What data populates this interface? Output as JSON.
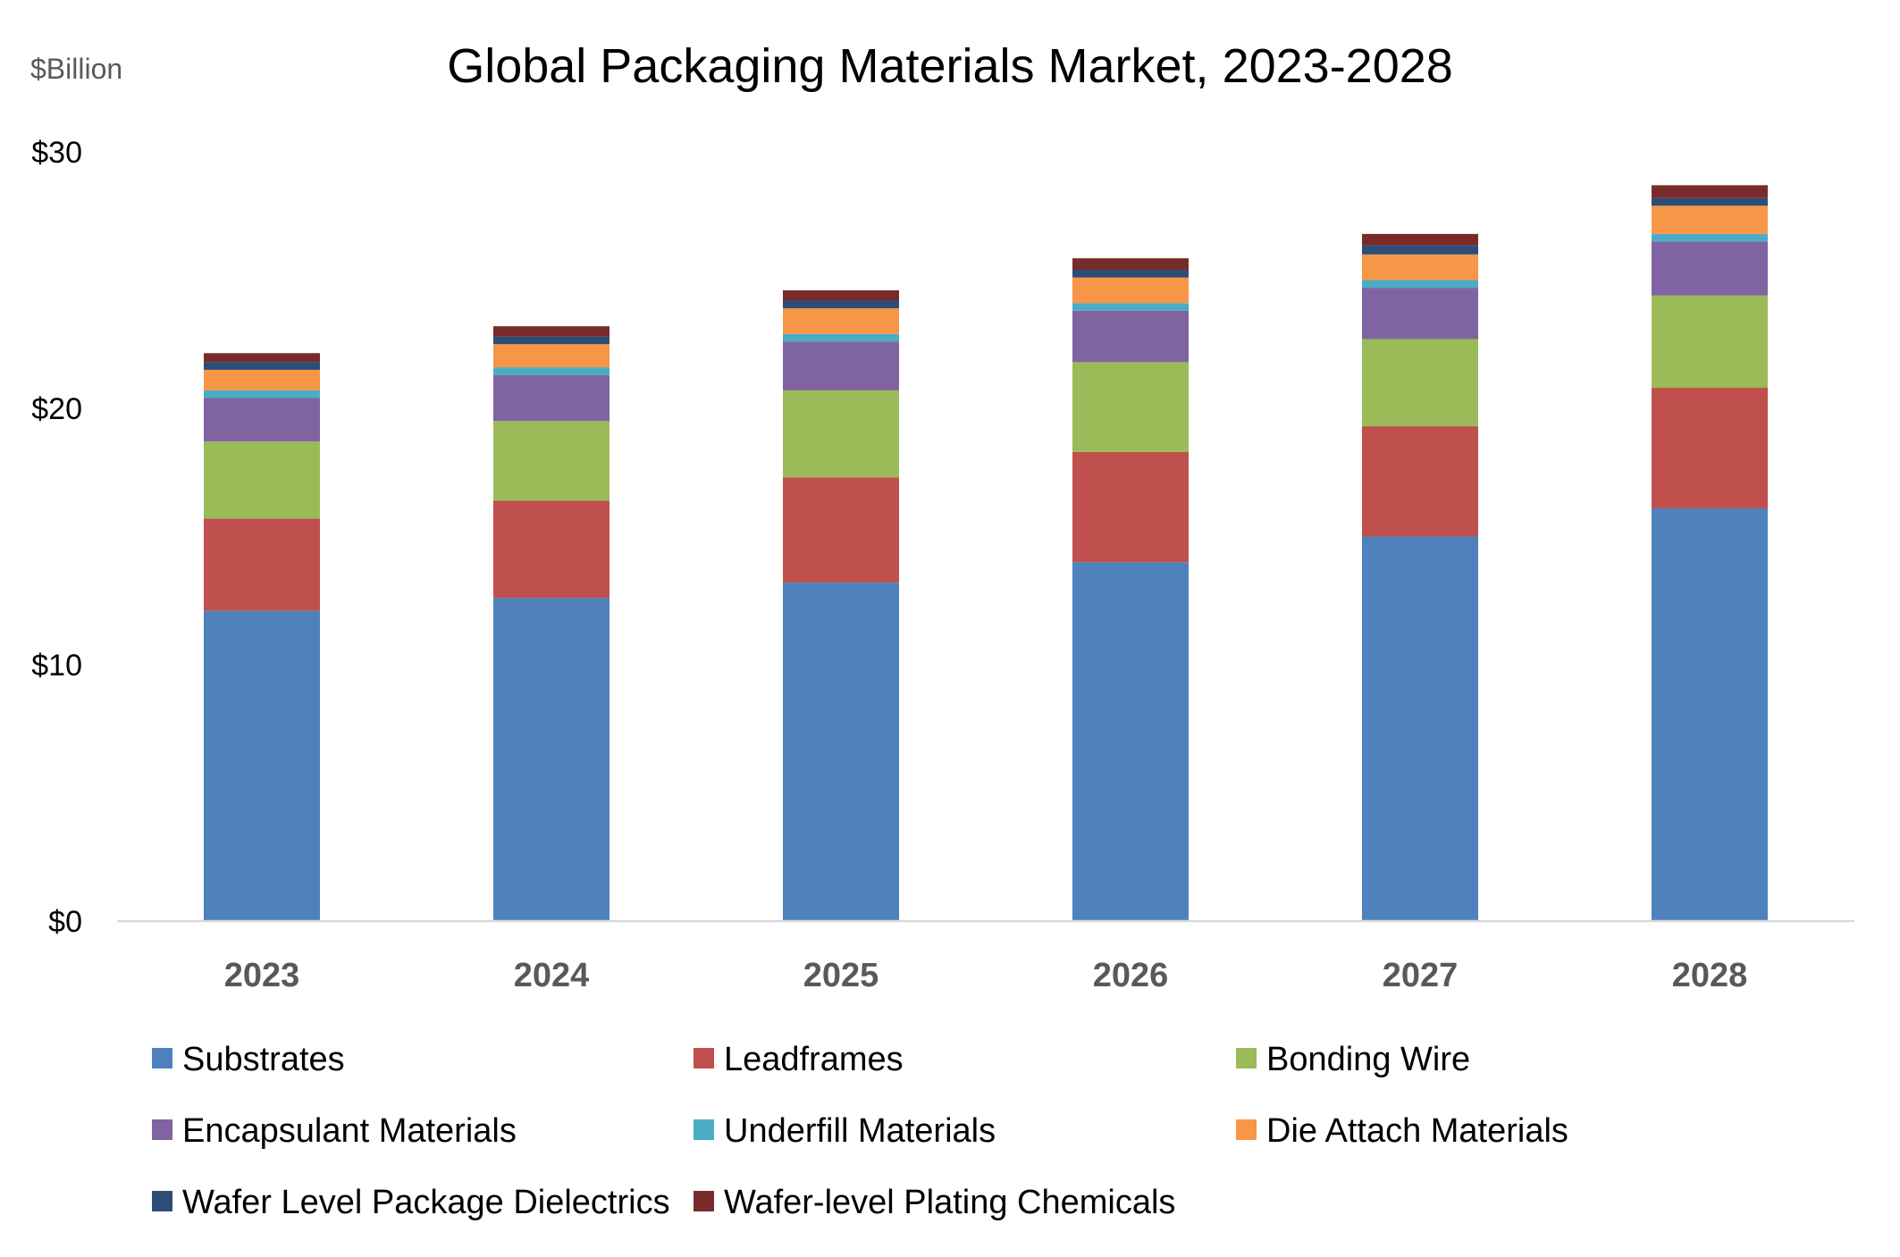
{
  "chart_data": {
    "type": "bar",
    "stacked": true,
    "title": "Global Packaging Materials Market, 2023-2028",
    "unit_label": "$Billion",
    "xlabel": "",
    "ylabel": "",
    "ylim": [
      0,
      30
    ],
    "yticks": [
      0,
      10,
      20,
      30
    ],
    "ytick_labels": [
      "$0",
      "$10",
      "$20",
      "$30"
    ],
    "grid": false,
    "legend_position": "bottom",
    "categories": [
      "2023",
      "2024",
      "2025",
      "2026",
      "2027",
      "2028"
    ],
    "series": [
      {
        "name": "Substrates",
        "color": "#4f81bd",
        "values": [
          12.1,
          12.6,
          13.2,
          14.0,
          15.0,
          16.1
        ]
      },
      {
        "name": "Leadframes",
        "color": "#c0504d",
        "values": [
          3.6,
          3.8,
          4.1,
          4.3,
          4.3,
          4.7
        ]
      },
      {
        "name": "Bonding Wire",
        "color": "#9bbb59",
        "values": [
          3.0,
          3.1,
          3.4,
          3.5,
          3.4,
          3.6
        ]
      },
      {
        "name": "Encapsulant Materials",
        "color": "#8064a2",
        "values": [
          1.7,
          1.8,
          1.9,
          2.0,
          2.0,
          2.1
        ]
      },
      {
        "name": "Underfill Materials",
        "color": "#4bacc6",
        "values": [
          0.3,
          0.3,
          0.3,
          0.3,
          0.3,
          0.3
        ]
      },
      {
        "name": "Die Attach Materials",
        "color": "#f79646",
        "values": [
          0.8,
          0.9,
          1.0,
          1.0,
          1.0,
          1.1
        ]
      },
      {
        "name": "Wafer Level Package Dielectrics",
        "color": "#2c4d75",
        "values": [
          0.3,
          0.3,
          0.3,
          0.3,
          0.35,
          0.3
        ]
      },
      {
        "name": "Wafer-level Plating Chemicals",
        "color": "#772c2a",
        "values": [
          0.35,
          0.4,
          0.4,
          0.45,
          0.45,
          0.5
        ]
      }
    ]
  }
}
